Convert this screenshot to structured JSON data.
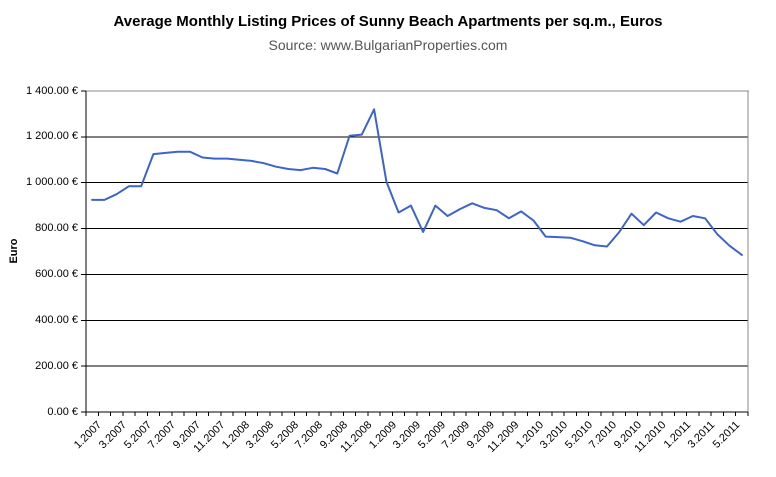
{
  "chart_data": {
    "type": "line",
    "title": "Average Monthly Listing Prices of Sunny Beach Apartments per sq.m., Euros",
    "subtitle": "Source: www.BulgarianProperties.com",
    "x": [
      "1.2007",
      "2.2007",
      "3.2007",
      "4.2007",
      "5.2007",
      "6.2007",
      "7.2007",
      "8.2007",
      "9.2007",
      "10.2007",
      "11.2007",
      "12.2007",
      "1.2008",
      "2.2008",
      "3.2008",
      "4.2008",
      "5.2008",
      "6.2008",
      "7.2008",
      "8.2008",
      "9.2008",
      "10.2008",
      "11.2008",
      "12.2008",
      "1.2009",
      "2.2009",
      "3.2009",
      "4.2009",
      "5.2009",
      "6.2009",
      "7.2009",
      "8.2009",
      "9.2009",
      "10.2009",
      "11.2009",
      "12.2009",
      "1.2010",
      "2.2010",
      "3.2010",
      "4.2010",
      "5.2010",
      "6.2010",
      "7.2010",
      "8.2010",
      "9.2010",
      "10.2010",
      "11.2010",
      "12.2010",
      "1.2011",
      "2.2011",
      "3.2011",
      "4.2011",
      "5.2011",
      "6.2011"
    ],
    "values": [
      925,
      925,
      950,
      985,
      985,
      1125,
      1130,
      1135,
      1135,
      1110,
      1105,
      1105,
      1100,
      1095,
      1085,
      1070,
      1060,
      1055,
      1065,
      1060,
      1040,
      1205,
      1210,
      1320,
      1005,
      870,
      900,
      785,
      900,
      855,
      885,
      910,
      890,
      880,
      845,
      875,
      835,
      765,
      763,
      760,
      745,
      727,
      722,
      785,
      865,
      815,
      870,
      845,
      830,
      855,
      845,
      775,
      725,
      685
    ],
    "x_axis": {
      "tick_labels_shown": [
        "1.2007",
        "3.2007",
        "5.2007",
        "7.2007",
        "9.2007",
        "11.2007",
        "1.2008",
        "3.2008",
        "5.2008",
        "7.2008",
        "9.2008",
        "11.2008",
        "1.2009",
        "3.2009",
        "5.2009",
        "7.2009",
        "9.2009",
        "11.2009",
        "1.2010",
        "3.2010",
        "5.2010",
        "7.2010",
        "9.2010",
        "11.2010",
        "1.2011",
        "3.2011",
        "5.2011"
      ]
    },
    "y_axis": {
      "title": "Euro",
      "ticks": [
        0,
        200,
        400,
        600,
        800,
        1000,
        1200,
        1400
      ],
      "tick_labels": [
        "0.00 €",
        "200.00 €",
        "400.00 €",
        "600.00 €",
        "800.00 €",
        "1 000.00 €",
        "1 200.00 €",
        "1 400.00 €"
      ],
      "ylim": [
        0,
        1400
      ]
    },
    "legend": "none",
    "grid": "horizontal",
    "colors": {
      "line": "#3c64cc",
      "gridline": "#000000",
      "plot_border": "#8a8a8a",
      "axis": "#000000",
      "subtitle_text": "#555555"
    }
  }
}
